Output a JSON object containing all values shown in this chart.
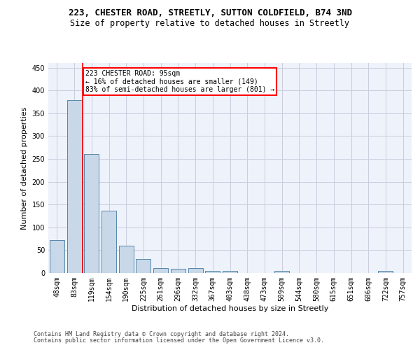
{
  "title": "223, CHESTER ROAD, STREETLY, SUTTON COLDFIELD, B74 3ND",
  "subtitle": "Size of property relative to detached houses in Streetly",
  "xlabel": "Distribution of detached houses by size in Streetly",
  "ylabel": "Number of detached properties",
  "footer_line1": "Contains HM Land Registry data © Crown copyright and database right 2024.",
  "footer_line2": "Contains public sector information licensed under the Open Government Licence v3.0.",
  "bin_labels": [
    "48sqm",
    "83sqm",
    "119sqm",
    "154sqm",
    "190sqm",
    "225sqm",
    "261sqm",
    "296sqm",
    "332sqm",
    "367sqm",
    "403sqm",
    "438sqm",
    "473sqm",
    "509sqm",
    "544sqm",
    "580sqm",
    "615sqm",
    "651sqm",
    "686sqm",
    "722sqm",
    "757sqm"
  ],
  "bar_values": [
    72,
    378,
    261,
    136,
    60,
    30,
    10,
    9,
    10,
    5,
    5,
    0,
    0,
    4,
    0,
    0,
    0,
    0,
    0,
    4,
    0
  ],
  "bar_color": "#c8d8e8",
  "bar_edge_color": "#5588aa",
  "annotation_text": "223 CHESTER ROAD: 95sqm\n← 16% of detached houses are smaller (149)\n83% of semi-detached houses are larger (801) →",
  "annotation_box_color": "white",
  "annotation_box_edge": "red",
  "vline_x": 1.5,
  "vline_color": "red",
  "grid_color": "#ccccdd",
  "bg_color": "#eef2fb",
  "ylim": [
    0,
    460
  ],
  "yticks": [
    0,
    50,
    100,
    150,
    200,
    250,
    300,
    350,
    400,
    450
  ],
  "title_fontsize": 9,
  "subtitle_fontsize": 8.5,
  "axis_label_fontsize": 8,
  "tick_fontsize": 7,
  "annotation_fontsize": 7,
  "footer_fontsize": 6
}
